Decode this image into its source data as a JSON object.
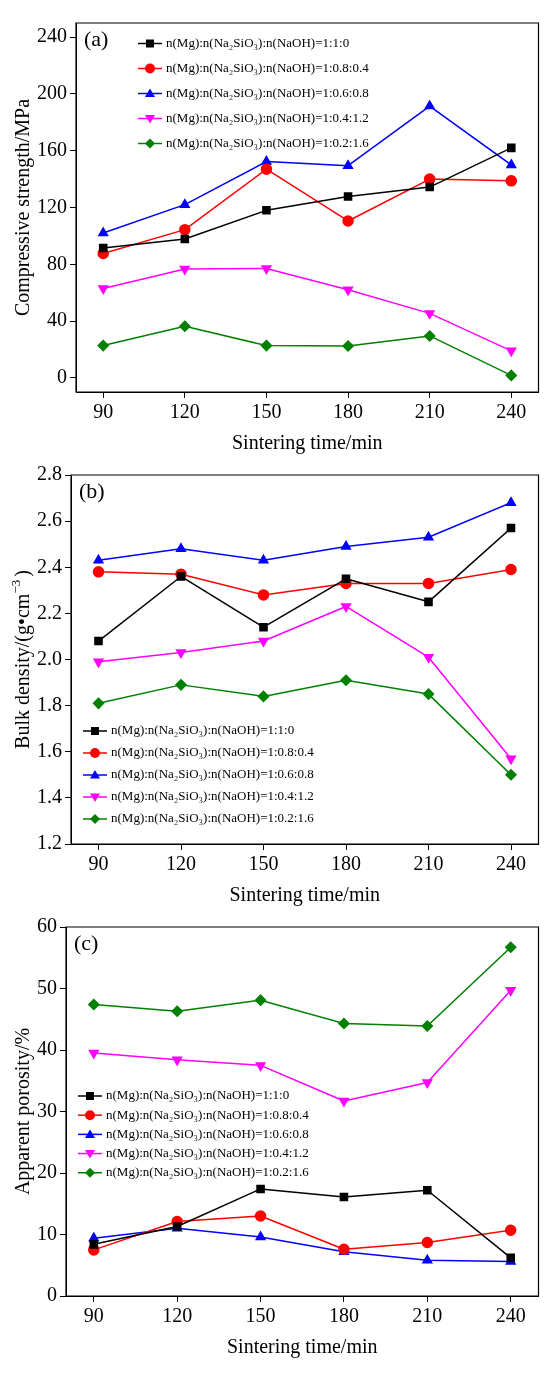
{
  "chart_data": [
    {
      "type": "line",
      "xlabel": "Sintering time/min",
      "ylabel": "Compressive strength/MPa",
      "annotations": [
        "(a)"
      ],
      "x": [
        90,
        120,
        150,
        180,
        210,
        240
      ],
      "xlim": [
        80,
        250
      ],
      "xticks": [
        90,
        120,
        150,
        180,
        210,
        240
      ],
      "ylim": [
        -10,
        250
      ],
      "yticks": [
        0,
        40,
        80,
        120,
        160,
        200,
        240
      ],
      "legend": "top",
      "series": [
        {
          "name": "n(Mg):n(Na₂SiO₃):n(NaOH)=1:1:0",
          "color": "#000000",
          "marker": "square",
          "values": [
            91.5,
            97.8,
            118,
            127.8,
            134.4,
            162
          ]
        },
        {
          "name": "n(Mg):n(Na₂SiO₃):n(NaOH)=1:0.8:0.4",
          "color": "#ff0000",
          "marker": "circle",
          "values": [
            87.6,
            104.4,
            147,
            110.5,
            140,
            138.8
          ]
        },
        {
          "name": "n(Mg):n(Na₂SiO₃):n(NaOH)=1:0.6:0.8",
          "color": "#0000ff",
          "marker": "triangle",
          "values": [
            102,
            122,
            152.4,
            149.5,
            191.5,
            150
          ]
        },
        {
          "name": "n(Mg):n(Na₂SiO₃):n(NaOH)=1:0.4:1.2",
          "color": "#ff00ff",
          "marker": "triangle-down",
          "values": [
            63,
            76.6,
            77,
            62,
            45.4,
            19
          ]
        },
        {
          "name": "n(Mg):n(Na₂SiO₃):n(NaOH)=1:0.2:1.6",
          "color": "#008000",
          "marker": "diamond",
          "values": [
            22.7,
            36.3,
            22.7,
            22.4,
            29.5,
            1.7
          ]
        }
      ]
    },
    {
      "type": "line",
      "xlabel": "Sintering time/min",
      "ylabel": "Bulk density/(g•cm$^{−3}$)",
      "annotations": [
        "(b)"
      ],
      "x": [
        90,
        120,
        150,
        180,
        210,
        240
      ],
      "xlim": [
        80,
        250
      ],
      "xticks": [
        90,
        120,
        150,
        180,
        210,
        240
      ],
      "ylim": [
        1.2,
        2.8
      ],
      "yticks": [
        1.2,
        1.4,
        1.6,
        1.8,
        {
          "value": 2,
          "label": "2.0"
        },
        2.2,
        2.4,
        2.6,
        2.8
      ],
      "legend": "bottom left",
      "series": [
        {
          "name": "n(Mg):n(Na₂SiO₃):n(NaOH)=1:1:0",
          "color": "#000000",
          "marker": "square",
          "values": [
            2.08,
            2.36,
            2.14,
            2.35,
            2.25,
            2.57
          ]
        },
        {
          "name": "n(Mg):n(Na₂SiO₃):n(NaOH)=1:0.8:0.4",
          "color": "#ff0000",
          "marker": "circle",
          "values": [
            2.38,
            2.37,
            2.28,
            2.33,
            2.33,
            2.39
          ]
        },
        {
          "name": "n(Mg):n(Na₂SiO₃):n(NaOH)=1:0.6:0.8",
          "color": "#0000ff",
          "marker": "triangle",
          "values": [
            2.43,
            2.48,
            2.43,
            2.49,
            2.53,
            2.68
          ]
        },
        {
          "name": "n(Mg):n(Na₂SiO₃):n(NaOH)=1:0.4:1.2",
          "color": "#ff00ff",
          "marker": "triangle-down",
          "values": [
            1.99,
            2.03,
            2.08,
            2.23,
            2.01,
            1.57
          ]
        },
        {
          "name": "n(Mg):n(Na₂SiO₃):n(NaOH)=1:0.2:1.6",
          "color": "#008000",
          "marker": "diamond",
          "values": [
            1.81,
            1.89,
            1.84,
            1.91,
            1.85,
            1.5
          ]
        }
      ]
    },
    {
      "type": "line",
      "xlabel": "Sintering time/min",
      "ylabel": "Apparent porosity/%",
      "annotations": [
        "(c)"
      ],
      "x": [
        90,
        120,
        150,
        180,
        210,
        240
      ],
      "xlim": [
        80,
        250
      ],
      "xticks": [
        90,
        120,
        150,
        180,
        210,
        240
      ],
      "ylim": [
        0,
        60
      ],
      "yticks": [
        0,
        10,
        20,
        30,
        40,
        50,
        60
      ],
      "legend": "center left",
      "series": [
        {
          "name": "n(Mg):n(Na₂SiO₃):n(NaOH)=1:1:0",
          "color": "#000000",
          "marker": "square",
          "values": [
            8.4,
            11.3,
            17.4,
            16.1,
            17.2,
            6.2
          ]
        },
        {
          "name": "n(Mg):n(Na₂SiO₃):n(NaOH)=1:0.8:0.4",
          "color": "#ff0000",
          "marker": "circle",
          "values": [
            7.5,
            12.1,
            13.0,
            7.6,
            8.7,
            10.7
          ]
        },
        {
          "name": "n(Mg):n(Na₂SiO₃):n(NaOH)=1:0.6:0.8",
          "color": "#0000ff",
          "marker": "triangle",
          "values": [
            9.4,
            11.0,
            9.6,
            7.2,
            5.8,
            5.6
          ]
        },
        {
          "name": "n(Mg):n(Na₂SiO₃):n(NaOH)=1:0.4:1.2",
          "color": "#ff00ff",
          "marker": "triangle-down",
          "values": [
            39.5,
            38.4,
            37.5,
            31.7,
            34.7,
            49.7
          ]
        },
        {
          "name": "n(Mg):n(Na₂SiO₃):n(NaOH)=1:0.2:1.6",
          "color": "#008000",
          "marker": "diamond",
          "values": [
            47.4,
            46.3,
            48.1,
            44.3,
            43.9,
            56.7
          ]
        }
      ]
    }
  ]
}
